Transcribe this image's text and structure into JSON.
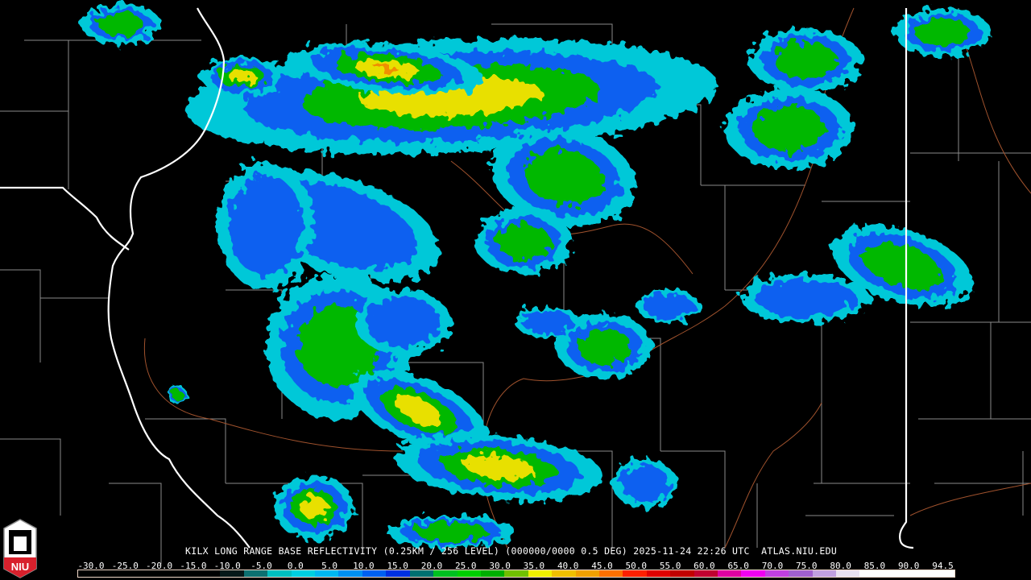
{
  "product_title": "KILX LONG RANGE BASE REFLECTIVITY (0.25KM / 256 LEVEL) (000000/0000 0.5 DEG) 2025-11-24 22:26 UTC  ATLAS.NIU.EDU",
  "logo": {
    "text": "NIU",
    "colors": {
      "red": "#d8202c",
      "white": "#ffffff",
      "gray": "#909090"
    }
  },
  "colorbar": {
    "unit_labels": [
      "-30.0",
      "-25.0",
      "-20.0",
      "-15.0",
      "-10.0",
      "-5.0",
      "0.0",
      "5.0",
      "10.0",
      "15.0",
      "20.0",
      "25.0",
      "30.0",
      "35.0",
      "40.0",
      "45.0",
      "50.0",
      "55.0",
      "60.0",
      "65.0",
      "70.0",
      "75.0",
      "80.0",
      "85.0",
      "90.0",
      "94.5"
    ],
    "colors": [
      "#000000",
      "#000000",
      "#000000",
      "#000000",
      "#000000",
      "#000000",
      "#061818",
      "#0c7070",
      "#00c0c0",
      "#00d0e0",
      "#00b8f0",
      "#0090f0",
      "#0060f0",
      "#0030e0",
      "#007070",
      "#00c020",
      "#00d000",
      "#00b000",
      "#70c000",
      "#f0f000",
      "#f0c000",
      "#f0a000",
      "#ff7000",
      "#ff2000",
      "#e00000",
      "#c00000",
      "#c00030",
      "#e000a0",
      "#f000f0",
      "#c040e0",
      "#a060d0",
      "#c0a0e0",
      "#e8e0f0",
      "#ffffff",
      "#ffffff",
      "#ffffff",
      "#ffffff"
    ]
  },
  "map_colors": {
    "state_border": "#ffffff",
    "county_line": "#8a8a8a",
    "river": "#a0522d"
  }
}
